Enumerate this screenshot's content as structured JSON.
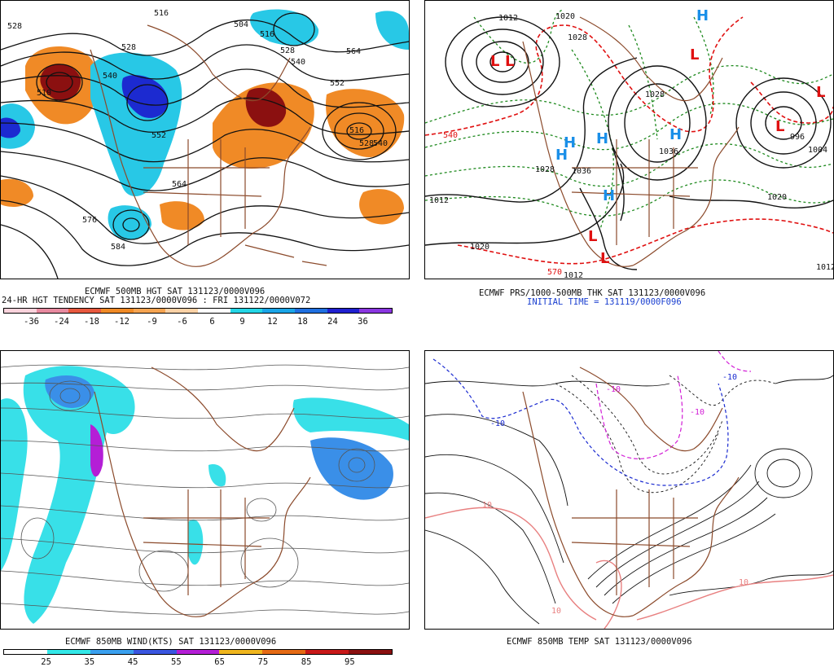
{
  "panels": {
    "p1": {
      "caption_line1": "ECMWF 500MB HGT SAT 131123/0000V096",
      "caption_line2": "24-HR HGT TENDENCY SAT 131123/0000V096 : FRI 131122/0000V072",
      "legend_values": [
        "-36",
        "-24",
        "-18",
        "-12",
        "-9",
        "-6",
        "6",
        "9",
        "12",
        "18",
        "24",
        "36"
      ],
      "legend_colors": [
        "#fbd3dc",
        "#e88aa0",
        "#e8593f",
        "#f08a26",
        "#f6a451",
        "#ffffff",
        "#ffffff",
        "#24d6e6",
        "#1aa5e8",
        "#1f6fe0",
        "#2020d0",
        "#8a36e0"
      ],
      "height_labels": [
        "528",
        "540",
        "528",
        "516",
        "504",
        "516",
        "528",
        "540",
        "564",
        "552",
        "516",
        "528",
        "540",
        "552",
        "564",
        "576",
        "584",
        "510"
      ]
    },
    "p2": {
      "caption_line1": "ECMWF PRS/1000-500MB THK SAT 131123/0000V096",
      "caption_line2": "INITIAL TIME = 131119/0000F096",
      "pressure_labels": [
        "1012",
        "1020",
        "1028",
        "1036",
        "1028",
        "1020",
        "1012",
        "1004",
        "996",
        "1012",
        "1028",
        "1036",
        "1020",
        "1012"
      ],
      "thickness_labels": [
        "540",
        "570"
      ],
      "low_symbol": "L",
      "high_symbol": "H"
    },
    "p3": {
      "caption_line1": "ECMWF 850MB WIND(KTS) SAT 131123/0000V096",
      "legend_values": [
        "25",
        "35",
        "45",
        "55",
        "65",
        "75",
        "85",
        "95"
      ],
      "legend_colors": [
        "#ffffff",
        "#33e8e8",
        "#3aa0ef",
        "#3a56e0",
        "#b41ed6",
        "#f0b61e",
        "#e56a14",
        "#c81818",
        "#8a1010"
      ]
    },
    "p4": {
      "caption_line1": "ECMWF 850MB TEMP SAT 131123/0000V096",
      "temp_labels": [
        "-10",
        "-10",
        "-10",
        "-10",
        "10",
        "10",
        "10"
      ]
    }
  },
  "colors": {
    "coast": "#8b4a2b",
    "contour": "#111111",
    "tend_warm": "#f08a26",
    "tend_warm_dark": "#8b1010",
    "tend_cold": "#28c8e6",
    "tend_cold_dark": "#1c2ad0",
    "isobar": "#111111",
    "thickness_green": "#1f8a1f",
    "thickness_red": "#e01010",
    "high_blue": "#1a8fe8",
    "wind_cyan": "#38e0e8",
    "wind_blue": "#3a8fe8",
    "wind_purple": "#b41ed6",
    "temp_blue": "#1a2ad0",
    "temp_magenta": "#d21ed6",
    "temp_pink": "#e88080"
  }
}
